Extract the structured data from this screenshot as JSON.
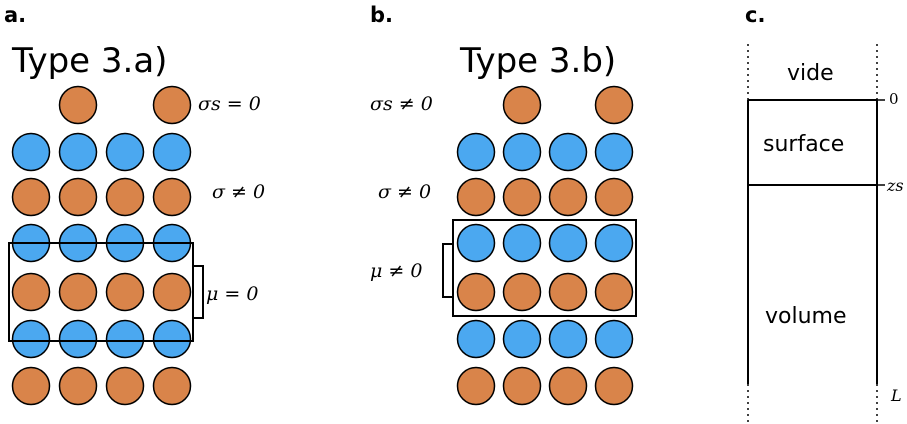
{
  "panels": {
    "a": {
      "letter": "a.",
      "title": "Type 3.a)",
      "labels": {
        "sigma_s": "σs = 0",
        "sigma": "σ ≠ 0",
        "mu": "μ = 0"
      }
    },
    "b": {
      "letter": "b.",
      "title": "Type 3.b)",
      "labels": {
        "sigma_s": "σs ≠ 0",
        "sigma": "σ ≠ 0",
        "mu": "μ ≠ 0"
      }
    },
    "c": {
      "letter": "c.",
      "regions": {
        "vide": "vide",
        "surface": "surface",
        "volume": "volume"
      },
      "ticks": {
        "zero": "0",
        "zs": "zs",
        "L": "L"
      }
    }
  },
  "colors": {
    "orange": "#d9844a",
    "blue": "#4ba8f0",
    "outline": "#000000"
  }
}
